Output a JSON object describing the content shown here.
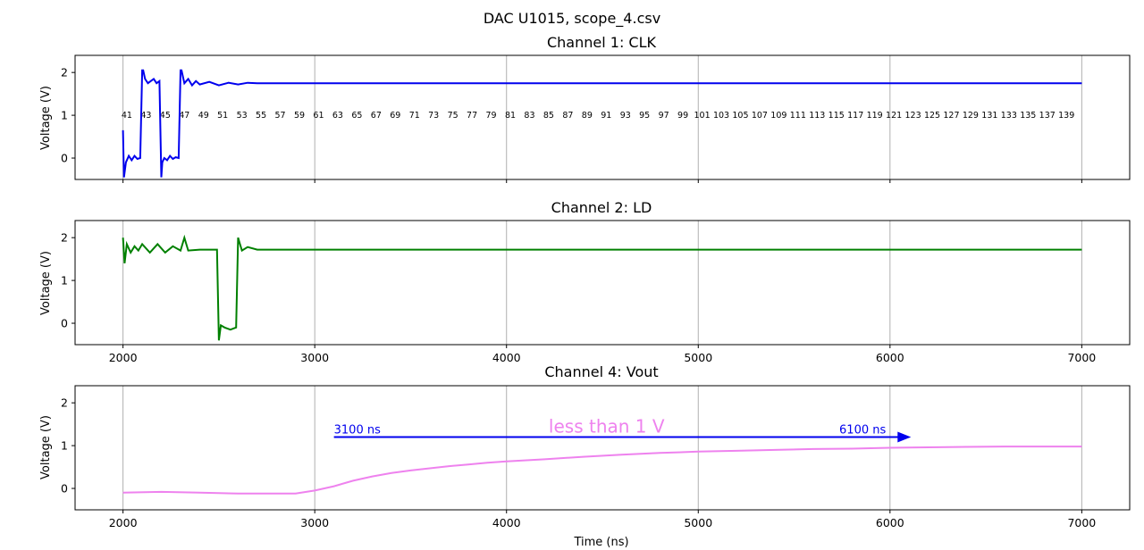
{
  "figure": {
    "suptitle": "DAC U1015, scope_4.csv",
    "xlabel": "Time (ns)"
  },
  "colors": {
    "clk": "#0000ee",
    "ld": "#008000",
    "vout": "#ee82ee",
    "arrow": "#0000ee",
    "grid": "#b0b0b0"
  },
  "chart_data": [
    {
      "type": "line",
      "title": "Channel 1: CLK",
      "ylabel": "Voltage (V)",
      "xlim": [
        1750,
        7250
      ],
      "ylim": [
        -0.5,
        2.4
      ],
      "yticks": [
        0,
        1,
        2
      ],
      "xticks": [
        2000,
        3000,
        4000,
        5000,
        6000,
        7000
      ],
      "show_xticklabels": false,
      "grid": "x",
      "series": [
        {
          "color": "#0000ee",
          "x": [
            2000,
            2005,
            2015,
            2030,
            2045,
            2060,
            2075,
            2090,
            2100,
            2105,
            2115,
            2130,
            2145,
            2160,
            2175,
            2190,
            2200,
            2205,
            2215,
            2230,
            2245,
            2260,
            2275,
            2290,
            2300,
            2305,
            2320,
            2340,
            2360,
            2380,
            2400,
            2450,
            2500,
            2550,
            2600,
            2650,
            2700,
            7000
          ],
          "y": [
            0.65,
            -0.45,
            -0.1,
            0.05,
            -0.05,
            0.05,
            -0.02,
            0.0,
            2.05,
            2.05,
            1.85,
            1.75,
            1.8,
            1.85,
            1.75,
            1.8,
            -0.45,
            -0.1,
            0.0,
            -0.05,
            0.05,
            -0.02,
            0.02,
            0.0,
            2.05,
            2.05,
            1.75,
            1.85,
            1.7,
            1.8,
            1.72,
            1.78,
            1.7,
            1.76,
            1.72,
            1.76,
            1.75,
            1.75
          ]
        }
      ],
      "count_labels": {
        "start": 41,
        "step": 2,
        "count": 50,
        "x_start": 2020,
        "x_step": 100,
        "y": 1.0
      }
    },
    {
      "type": "line",
      "title": "Channel 2: LD",
      "ylabel": "Voltage (V)",
      "xlim": [
        1750,
        7250
      ],
      "ylim": [
        -0.5,
        2.4
      ],
      "yticks": [
        0,
        1,
        2
      ],
      "xticks": [
        2000,
        3000,
        4000,
        5000,
        6000,
        7000
      ],
      "show_xticklabels": true,
      "grid": "x",
      "series": [
        {
          "color": "#008000",
          "x": [
            2000,
            2008,
            2020,
            2040,
            2060,
            2080,
            2100,
            2140,
            2180,
            2220,
            2260,
            2300,
            2320,
            2340,
            2400,
            2460,
            2490,
            2500,
            2510,
            2530,
            2560,
            2590,
            2600,
            2610,
            2620,
            2650,
            2700,
            7000
          ],
          "y": [
            2.0,
            1.4,
            1.85,
            1.65,
            1.8,
            1.7,
            1.85,
            1.65,
            1.85,
            1.65,
            1.8,
            1.7,
            2.0,
            1.7,
            1.72,
            1.72,
            1.72,
            -0.4,
            -0.05,
            -0.1,
            -0.15,
            -0.1,
            2.0,
            1.85,
            1.7,
            1.78,
            1.72,
            1.72
          ]
        }
      ]
    },
    {
      "type": "line",
      "title": "Channel 4: Vout",
      "ylabel": "Voltage (V)",
      "xlabel": "Time (ns)",
      "xlim": [
        1750,
        7250
      ],
      "ylim": [
        -0.5,
        2.4
      ],
      "yticks": [
        0,
        1,
        2
      ],
      "xticks": [
        2000,
        3000,
        4000,
        5000,
        6000,
        7000
      ],
      "show_xticklabels": true,
      "grid": "x",
      "series": [
        {
          "color": "#ee82ee",
          "x": [
            2000,
            2200,
            2400,
            2600,
            2800,
            2900,
            3000,
            3100,
            3200,
            3300,
            3400,
            3500,
            3600,
            3700,
            3800,
            3900,
            4000,
            4200,
            4400,
            4600,
            4800,
            5000,
            5200,
            5400,
            5600,
            5800,
            6000,
            6200,
            6400,
            6600,
            6800,
            7000
          ],
          "y": [
            -0.1,
            -0.08,
            -0.1,
            -0.12,
            -0.12,
            -0.12,
            -0.05,
            0.05,
            0.18,
            0.28,
            0.36,
            0.42,
            0.47,
            0.52,
            0.56,
            0.6,
            0.63,
            0.68,
            0.74,
            0.79,
            0.83,
            0.86,
            0.88,
            0.9,
            0.92,
            0.93,
            0.95,
            0.96,
            0.97,
            0.98,
            0.98,
            0.98
          ]
        }
      ],
      "annotations": {
        "arrow_from": 3100,
        "arrow_to": 6100,
        "arrow_y": 1.2,
        "start_label": "3100 ns",
        "end_label": "6100 ns",
        "note": "less than 1 V",
        "note_x": 4220,
        "note_y": 1.3
      }
    }
  ]
}
